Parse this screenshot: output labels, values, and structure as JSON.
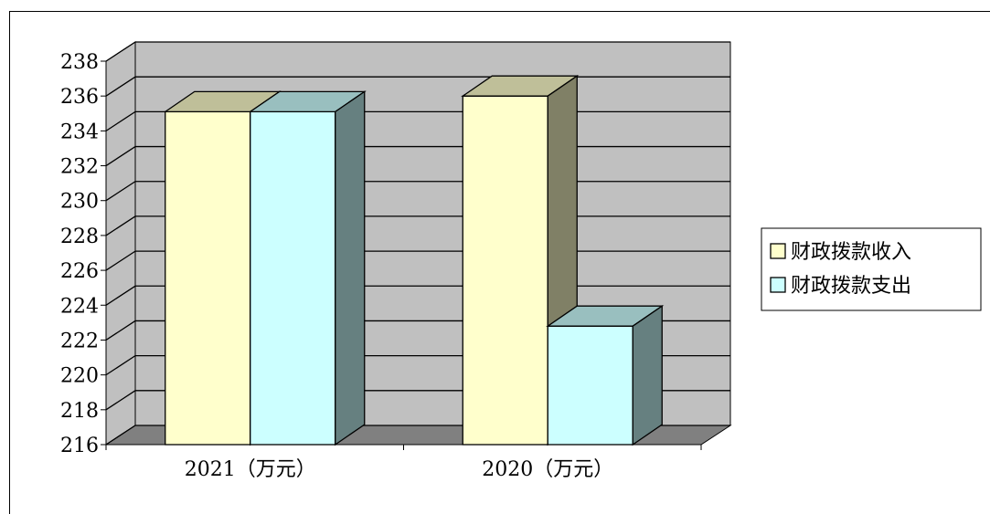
{
  "chart_data": {
    "type": "bar",
    "style": "3d-clustered",
    "categories": [
      "2021（万元）",
      "2020（万元）"
    ],
    "series": [
      {
        "name": "财政拨款收入",
        "values": [
          235.1,
          236.0
        ],
        "color": "#ffffcc"
      },
      {
        "name": "财政拨款支出",
        "values": [
          235.1,
          222.8
        ],
        "color": "#ccffff"
      }
    ],
    "ylim": [
      216,
      238
    ],
    "ytick_step": 2,
    "yticks": [
      "216",
      "218",
      "220",
      "222",
      "224",
      "226",
      "228",
      "230",
      "232",
      "234",
      "236",
      "238"
    ],
    "grid": true,
    "wall_color": "#c0c0c0",
    "floor_color": "#808080",
    "legend_position": "right"
  }
}
